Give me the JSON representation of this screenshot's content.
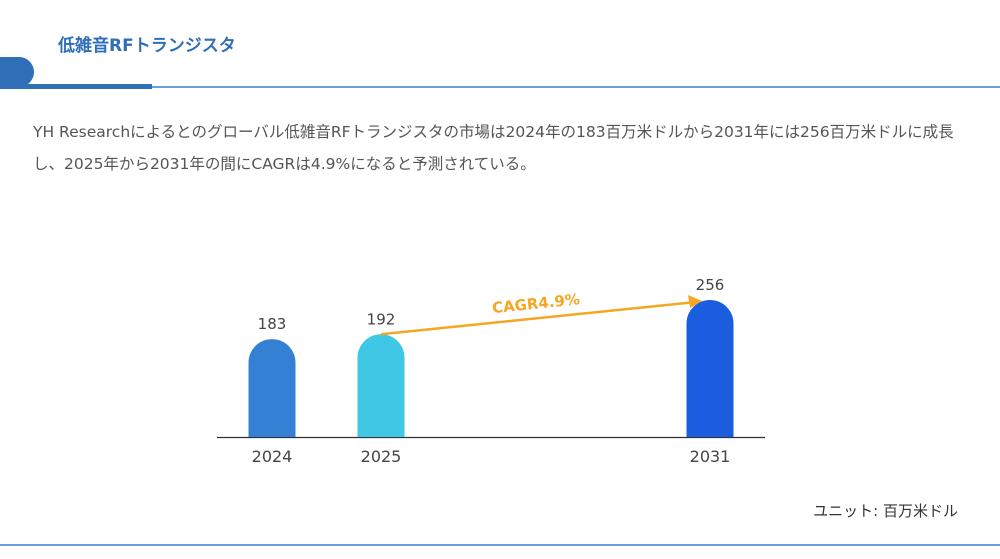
{
  "header": {
    "title": "低雑音RFトランジスタ"
  },
  "description": "YH Researchによるとのグローバル低雑音RFトランジスタの市場は2024年の183百万米ドルから2031年には256百万米ドルに成長し、2025年から2031年の間にCAGRは4.9%になると予測されている。",
  "unit_label": "ユニット: 百万米ドル",
  "colors": {
    "accent": "#2f6fb8",
    "arrow": "#f5a623"
  },
  "chart_data": {
    "type": "bar",
    "categories": [
      "2024",
      "2025",
      "2031"
    ],
    "values": [
      183,
      192,
      256
    ],
    "bar_colors": [
      "#3380d4",
      "#3ec8e6",
      "#1a5ddf"
    ],
    "ylim": [
      0,
      256
    ],
    "grid": false,
    "annotation": {
      "text": "CAGR4.9%",
      "from": "2025",
      "to": "2031"
    }
  }
}
